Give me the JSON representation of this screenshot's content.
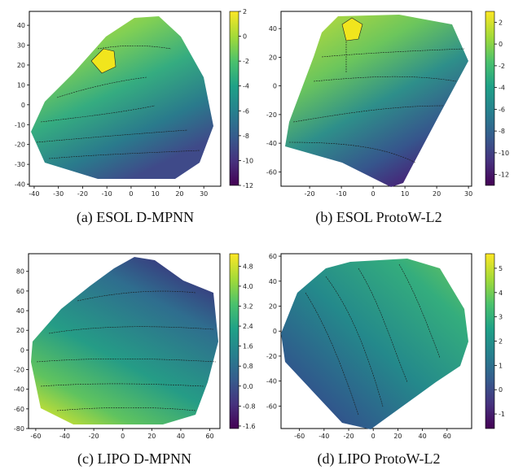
{
  "chart_data": [
    {
      "type": "contour",
      "caption": "(a) ESOL D-MPNN",
      "x_ticks": [
        "-40",
        "-30",
        "-20",
        "-10",
        "0",
        "10",
        "20",
        "30"
      ],
      "y_ticks": [
        "40",
        "30",
        "20",
        "10",
        "0",
        "-10",
        "-20",
        "-30",
        "-40"
      ],
      "xlim": [
        -42,
        37
      ],
      "ylim": [
        -41,
        47
      ],
      "colorbar_ticks": [
        "2",
        "0",
        "-2",
        "-4",
        "-6",
        "-8",
        "-10",
        "-12"
      ],
      "colorbar_range": [
        -12,
        2
      ]
    },
    {
      "type": "contour",
      "caption": "(b) ESOL ProtoW-L2",
      "x_ticks": [
        "-20",
        "-10",
        "0",
        "10",
        "20",
        "30"
      ],
      "y_ticks": [
        "40",
        "20",
        "0",
        "-20",
        "-40",
        "-60"
      ],
      "xlim": [
        -29,
        31
      ],
      "ylim": [
        -70,
        52
      ],
      "colorbar_ticks": [
        "2",
        "0",
        "-2",
        "-4",
        "-6",
        "-8",
        "-10",
        "-12"
      ],
      "colorbar_range": [
        -13,
        3
      ]
    },
    {
      "type": "contour",
      "caption": "(c) LIPO D-MPNN",
      "x_ticks": [
        "-60",
        "-40",
        "-20",
        "0",
        "20",
        "40",
        "60"
      ],
      "y_ticks": [
        "80",
        "60",
        "40",
        "20",
        "0",
        "-20",
        "-40",
        "-60",
        "-80"
      ],
      "xlim": [
        -65,
        67
      ],
      "ylim": [
        -80,
        98
      ],
      "colorbar_ticks": [
        "4.8",
        "4.0",
        "3.2",
        "2.4",
        "1.6",
        "0.8",
        "0.0",
        "-0.8",
        "-1.6"
      ],
      "colorbar_range": [
        -1.7,
        5.3
      ]
    },
    {
      "type": "contour",
      "caption": "(d) LIPO ProtoW-L2",
      "x_ticks": [
        "-60",
        "-40",
        "-20",
        "0",
        "20",
        "40",
        "60"
      ],
      "y_ticks": [
        "60",
        "40",
        "20",
        "0",
        "-20",
        "-40",
        "-60"
      ],
      "xlim": [
        -75,
        80
      ],
      "ylim": [
        -78,
        62
      ],
      "colorbar_ticks": [
        "5",
        "4",
        "3",
        "2",
        "1",
        "0",
        "-1"
      ],
      "colorbar_range": [
        -1.6,
        5.6
      ]
    }
  ]
}
